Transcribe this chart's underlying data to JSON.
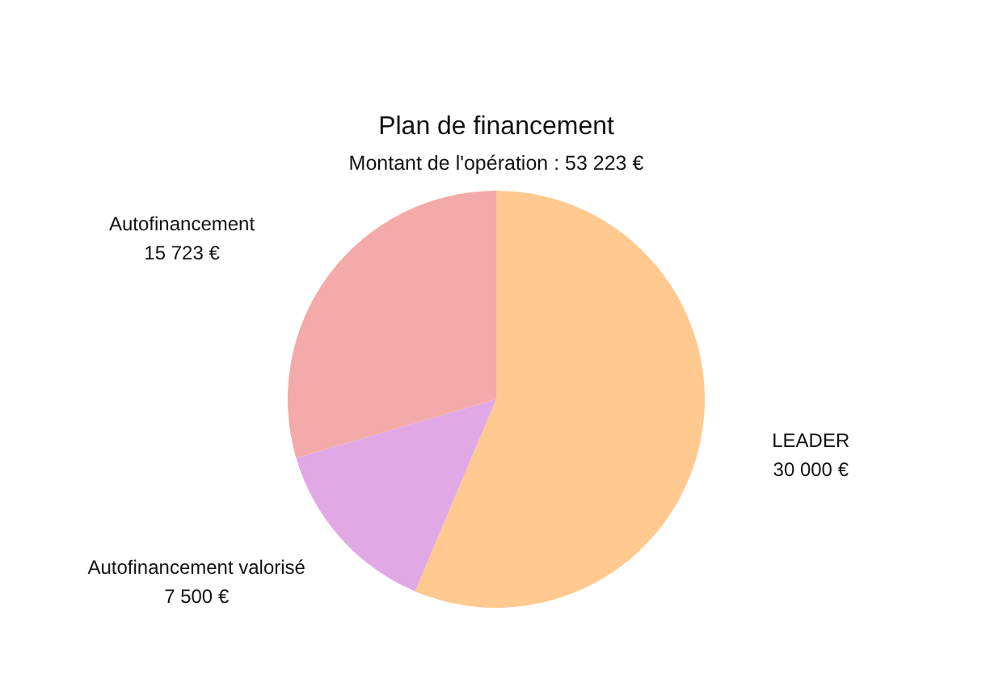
{
  "chart_data": {
    "type": "pie",
    "title": "Plan de financement",
    "subtitle": "Montant de l'opération : 53 223 €",
    "categories": [
      "LEADER",
      "Autofinancement valorisé",
      "Autofinancement"
    ],
    "values": [
      30000,
      7500,
      15723
    ],
    "colors": [
      "#ffc98f",
      "#e1a8e6",
      "#f3aaa8"
    ],
    "value_labels": [
      "30 000 €",
      "7 500 €",
      "15 723 €"
    ]
  }
}
